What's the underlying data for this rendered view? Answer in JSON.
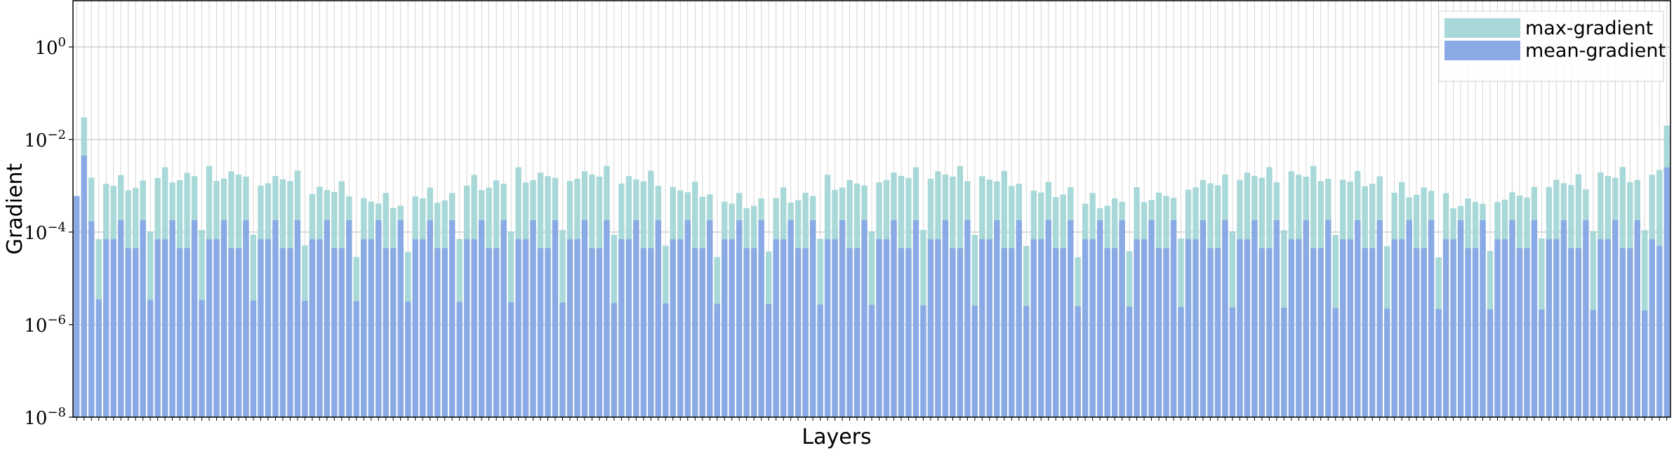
{
  "chart_data": {
    "type": "bar",
    "xlabel": "Layers",
    "ylabel": "Gradient",
    "yscale": "log",
    "ylim": [
      1e-08,
      10
    ],
    "y_ticks": [
      {
        "base": "10",
        "exp": "0"
      },
      {
        "base": "10",
        "exp": "−2"
      },
      {
        "base": "10",
        "exp": "−4"
      },
      {
        "base": "10",
        "exp": "−6"
      },
      {
        "base": "10",
        "exp": "−8"
      }
    ],
    "grid": true,
    "legend_position": "top-right",
    "layer_count": 217,
    "series": [
      {
        "name": "max-gradient",
        "color": "#a8d9d8",
        "values": []
      },
      {
        "name": "mean-gradient",
        "color": "#8aaae6",
        "values": []
      }
    ]
  }
}
